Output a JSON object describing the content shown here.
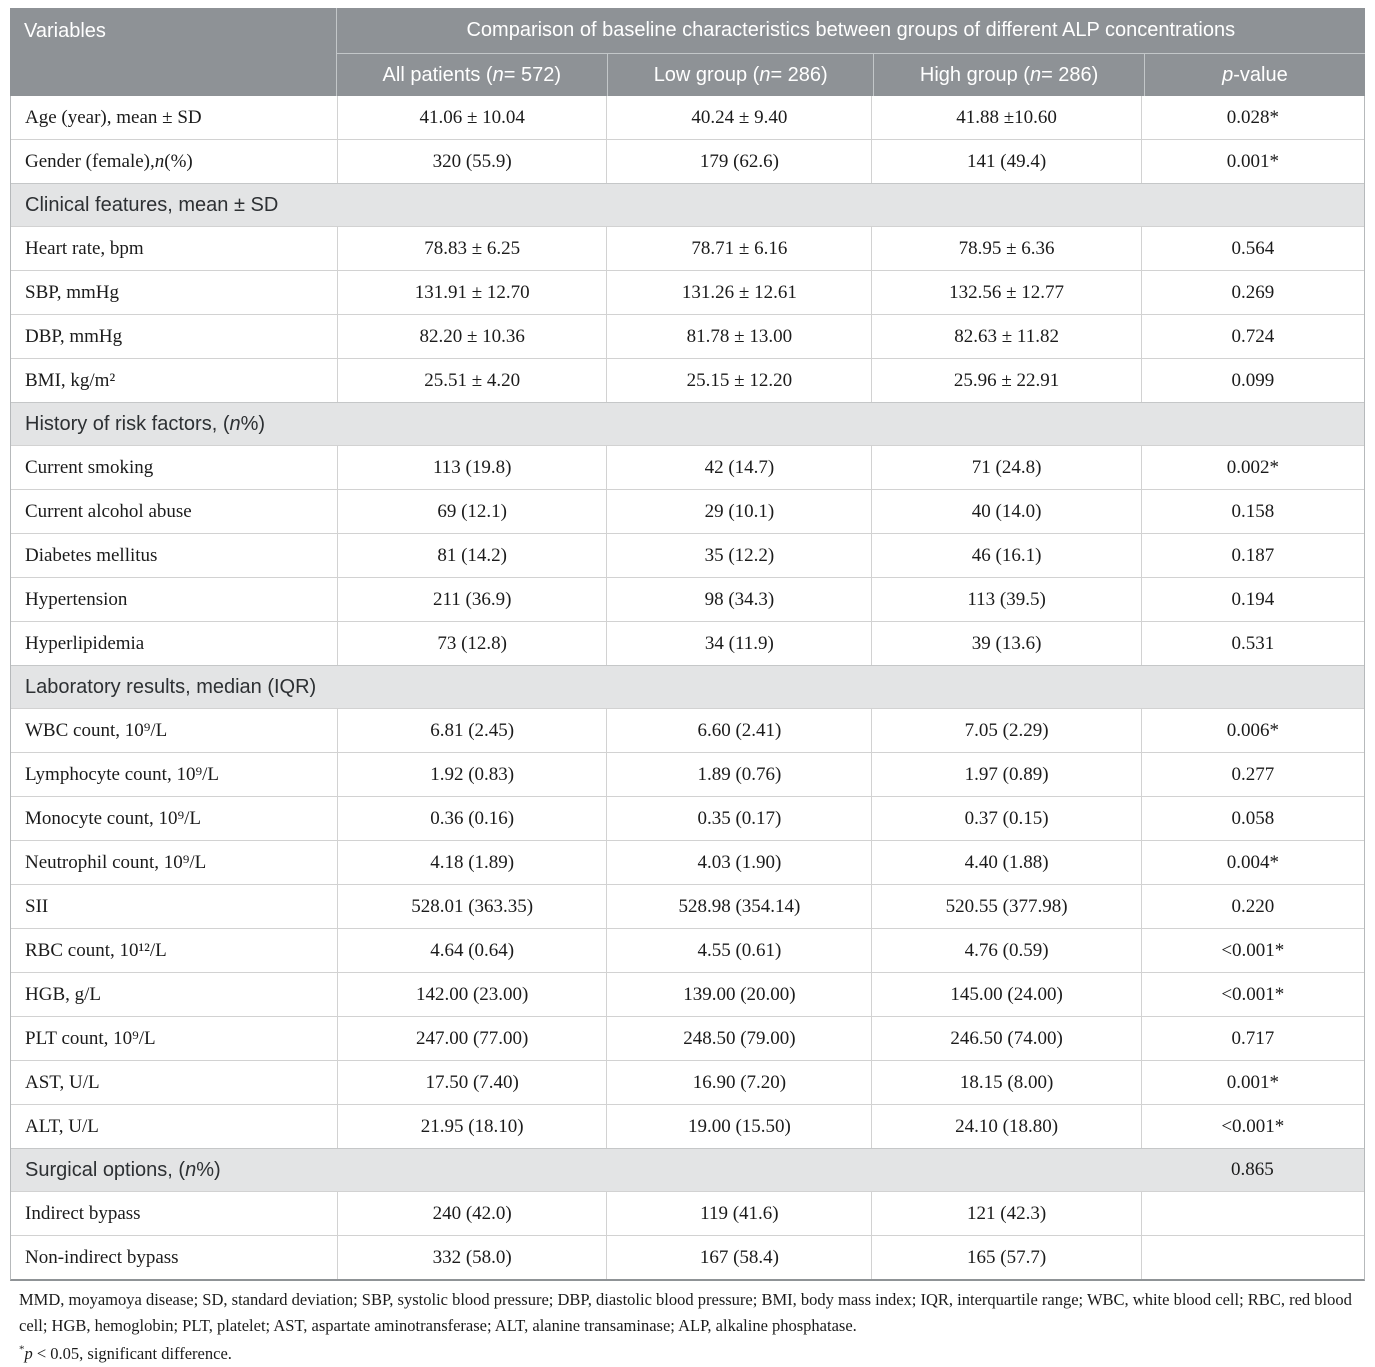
{
  "table": {
    "header": {
      "variables_label": "Variables",
      "span_title": "Comparison of baseline characteristics between groups of different ALP concentrations",
      "columns": [
        {
          "pre": "All patients (",
          "it": "n",
          "post": " = 572)"
        },
        {
          "pre": "Low group (",
          "it": "n",
          "post": " = 286)"
        },
        {
          "pre": "High group (",
          "it": "n",
          "post": " = 286)"
        },
        {
          "pre": "",
          "it": "p",
          "post": "-value"
        }
      ]
    },
    "rows": [
      {
        "type": "data",
        "label": {
          "pre": "Age (year), mean ± SD",
          "it": "",
          "post": ""
        },
        "values": [
          "41.06 ± 10.04",
          "40.24 ± 9.40",
          "41.88 ±10.60",
          "0.028*"
        ]
      },
      {
        "type": "data",
        "label": {
          "pre": "Gender (female), ",
          "it": "n",
          "post": " (%)"
        },
        "values": [
          "320 (55.9)",
          "179 (62.6)",
          "141 (49.4)",
          "0.001*"
        ]
      },
      {
        "type": "section",
        "label": {
          "pre": "Clinical features, mean ± SD",
          "it": "",
          "post": ""
        },
        "p": ""
      },
      {
        "type": "data",
        "label": {
          "pre": "Heart rate, bpm",
          "it": "",
          "post": ""
        },
        "values": [
          "78.83 ± 6.25",
          "78.71 ± 6.16",
          "78.95 ± 6.36",
          "0.564"
        ]
      },
      {
        "type": "data",
        "label": {
          "pre": "SBP, mmHg",
          "it": "",
          "post": ""
        },
        "values": [
          "131.91 ± 12.70",
          "131.26 ± 12.61",
          "132.56 ± 12.77",
          "0.269"
        ]
      },
      {
        "type": "data",
        "label": {
          "pre": "DBP, mmHg",
          "it": "",
          "post": ""
        },
        "values": [
          "82.20 ± 10.36",
          "81.78 ± 13.00",
          "82.63 ± 11.82",
          "0.724"
        ]
      },
      {
        "type": "data",
        "label": {
          "pre": "BMI, kg/m²",
          "it": "",
          "post": ""
        },
        "values": [
          "25.51 ± 4.20",
          "25.15 ± 12.20",
          "25.96 ± 22.91",
          "0.099"
        ]
      },
      {
        "type": "section",
        "label": {
          "pre": "History of risk factors, (",
          "it": "n",
          "post": "%)"
        },
        "p": ""
      },
      {
        "type": "data",
        "label": {
          "pre": "Current smoking",
          "it": "",
          "post": ""
        },
        "values": [
          "113 (19.8)",
          "42 (14.7)",
          "71 (24.8)",
          "0.002*"
        ]
      },
      {
        "type": "data",
        "label": {
          "pre": "Current alcohol abuse",
          "it": "",
          "post": ""
        },
        "values": [
          "69 (12.1)",
          "29 (10.1)",
          "40 (14.0)",
          "0.158"
        ]
      },
      {
        "type": "data",
        "label": {
          "pre": "Diabetes mellitus",
          "it": "",
          "post": ""
        },
        "values": [
          "81 (14.2)",
          "35 (12.2)",
          "46 (16.1)",
          "0.187"
        ]
      },
      {
        "type": "data",
        "label": {
          "pre": "Hypertension",
          "it": "",
          "post": ""
        },
        "values": [
          "211 (36.9)",
          "98 (34.3)",
          "113 (39.5)",
          "0.194"
        ]
      },
      {
        "type": "data",
        "label": {
          "pre": "Hyperlipidemia",
          "it": "",
          "post": ""
        },
        "values": [
          "73 (12.8)",
          "34 (11.9)",
          "39 (13.6)",
          "0.531"
        ]
      },
      {
        "type": "section",
        "label": {
          "pre": "Laboratory results, median (IQR)",
          "it": "",
          "post": ""
        },
        "p": ""
      },
      {
        "type": "data",
        "label": {
          "pre": "WBC count, 10⁹/L",
          "it": "",
          "post": ""
        },
        "values": [
          "6.81 (2.45)",
          "6.60 (2.41)",
          "7.05 (2.29)",
          "0.006*"
        ]
      },
      {
        "type": "data",
        "label": {
          "pre": "Lymphocyte count, 10⁹/L",
          "it": "",
          "post": ""
        },
        "values": [
          "1.92 (0.83)",
          "1.89 (0.76)",
          "1.97 (0.89)",
          "0.277"
        ]
      },
      {
        "type": "data",
        "label": {
          "pre": "Monocyte count, 10⁹/L",
          "it": "",
          "post": ""
        },
        "values": [
          "0.36 (0.16)",
          "0.35 (0.17)",
          "0.37 (0.15)",
          "0.058"
        ]
      },
      {
        "type": "data",
        "label": {
          "pre": "Neutrophil count, 10⁹/L",
          "it": "",
          "post": ""
        },
        "values": [
          "4.18 (1.89)",
          "4.03 (1.90)",
          "4.40 (1.88)",
          "0.004*"
        ]
      },
      {
        "type": "data",
        "label": {
          "pre": "SII",
          "it": "",
          "post": ""
        },
        "values": [
          "528.01 (363.35)",
          "528.98 (354.14)",
          "520.55 (377.98)",
          "0.220"
        ]
      },
      {
        "type": "data",
        "label": {
          "pre": "RBC count, 10¹²/L",
          "it": "",
          "post": ""
        },
        "values": [
          "4.64 (0.64)",
          "4.55 (0.61)",
          "4.76 (0.59)",
          "<0.001*"
        ]
      },
      {
        "type": "data",
        "label": {
          "pre": "HGB, g/L",
          "it": "",
          "post": ""
        },
        "values": [
          "142.00 (23.00)",
          "139.00 (20.00)",
          "145.00 (24.00)",
          "<0.001*"
        ]
      },
      {
        "type": "data",
        "label": {
          "pre": "PLT count, 10⁹/L",
          "it": "",
          "post": ""
        },
        "values": [
          "247.00 (77.00)",
          "248.50 (79.00)",
          "246.50 (74.00)",
          "0.717"
        ]
      },
      {
        "type": "data",
        "label": {
          "pre": "AST, U/L",
          "it": "",
          "post": ""
        },
        "values": [
          "17.50 (7.40)",
          "16.90 (7.20)",
          "18.15 (8.00)",
          "0.001*"
        ]
      },
      {
        "type": "data",
        "label": {
          "pre": "ALT, U/L",
          "it": "",
          "post": ""
        },
        "values": [
          "21.95 (18.10)",
          "19.00 (15.50)",
          "24.10 (18.80)",
          "<0.001*"
        ]
      },
      {
        "type": "section",
        "label": {
          "pre": "Surgical options, (",
          "it": "n",
          "post": "%)"
        },
        "p": "0.865"
      },
      {
        "type": "data",
        "label": {
          "pre": "Indirect bypass",
          "it": "",
          "post": ""
        },
        "values": [
          "240 (42.0)",
          "119 (41.6)",
          "121 (42.3)",
          ""
        ]
      },
      {
        "type": "data",
        "label": {
          "pre": "Non-indirect bypass",
          "it": "",
          "post": ""
        },
        "values": [
          "332 (58.0)",
          "167 (58.4)",
          "165 (57.7)",
          ""
        ]
      }
    ],
    "footnotes": {
      "abbreviations": "MMD, moyamoya disease; SD, standard deviation; SBP, systolic blood pressure; DBP, diastolic blood pressure; BMI, body mass index; IQR, interquartile range; WBC, white blood cell; RBC, red blood cell; HGB, hemoglobin; PLT, platelet; AST, aspartate aminotransferase; ALT, alanine transaminase; ALP, alkaline phosphatase.",
      "significance": {
        "sup": "*",
        "it": "p",
        "post": " < 0.05, significant difference."
      }
    },
    "colors": {
      "header_bg": "#8e9296",
      "header_text": "#ffffff",
      "section_bg": "#e3e4e5",
      "body_text": "#1b1b1b",
      "grid_line": "#d2d2d2"
    }
  }
}
